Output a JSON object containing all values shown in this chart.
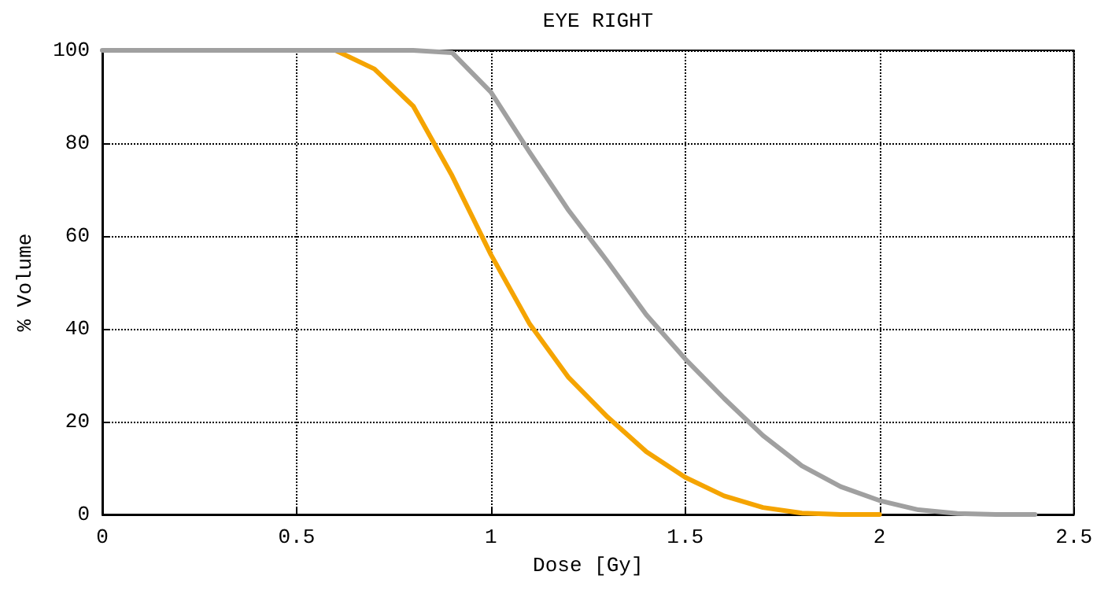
{
  "chart_data": {
    "type": "line",
    "title": "EYE RIGHT",
    "xlabel": "Dose [Gy]",
    "ylabel": "% Volume",
    "xlim": [
      0,
      2.5
    ],
    "xticks": [
      0,
      0.5,
      1,
      1.5,
      2,
      2.5
    ],
    "ylim": [
      0,
      100
    ],
    "yticks": [
      0,
      20,
      40,
      60,
      80,
      100
    ],
    "grid": true,
    "marker": "none",
    "line_style": "solid",
    "series": [
      {
        "color": "#f5a400",
        "x": [
          0.6,
          0.7,
          0.8,
          0.9,
          1.0,
          1.1,
          1.2,
          1.3,
          1.4,
          1.5,
          1.6,
          1.7,
          1.8,
          1.9,
          2.0
        ],
        "values": [
          100,
          96,
          88,
          73,
          56,
          41,
          29.5,
          21,
          13.5,
          8,
          4,
          1.5,
          0.3,
          0,
          0
        ]
      },
      {
        "color": "#a0a0a0",
        "x": [
          0,
          0.1,
          0.2,
          0.3,
          0.4,
          0.5,
          0.6,
          0.7,
          0.8,
          0.9,
          1.0,
          1.1,
          1.2,
          1.3,
          1.4,
          1.5,
          1.6,
          1.7,
          1.8,
          1.9,
          2.0,
          2.1,
          2.2,
          2.3,
          2.4
        ],
        "values": [
          100,
          100,
          100,
          100,
          100,
          100,
          100,
          100,
          100,
          99.5,
          91,
          78,
          65.5,
          54.5,
          43,
          33.5,
          25,
          17,
          10.5,
          6,
          3,
          1,
          0.2,
          0,
          0
        ]
      }
    ]
  }
}
